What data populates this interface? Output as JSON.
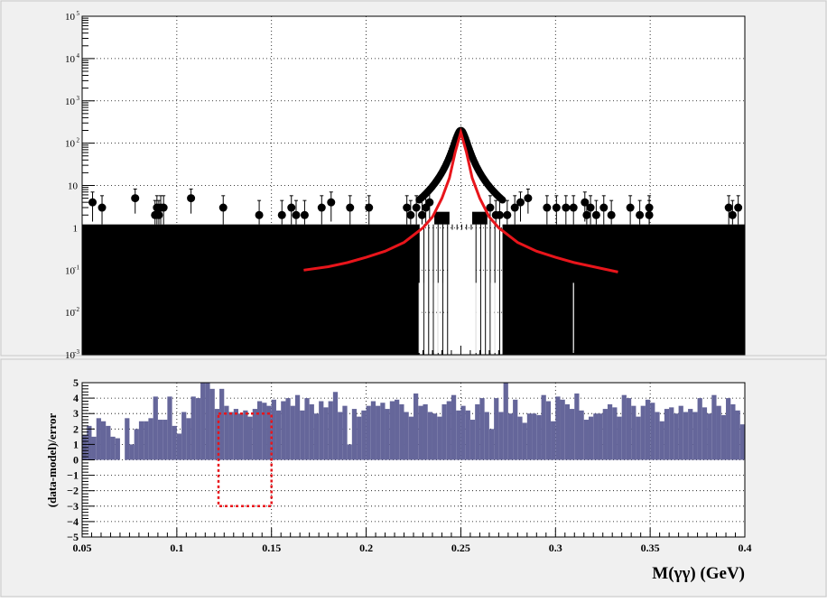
{
  "colors": {
    "background": "#f0f0f0",
    "plot_bg": "#ffffff",
    "data_points": "#000000",
    "fit_curve": "#e8151b",
    "residual_bars": "#65669a",
    "box": "#e8151b"
  },
  "chart_data": [
    {
      "type": "scatter",
      "name": "top-panel",
      "yscale": "log",
      "xlim": [
        0.05,
        0.4
      ],
      "ylim": [
        0.001,
        100000
      ],
      "grid": true,
      "y_ticks": [
        {
          "value": 0.001,
          "base": "10",
          "exp": "-3"
        },
        {
          "value": 0.01,
          "base": "10",
          "exp": "-2"
        },
        {
          "value": 0.1,
          "base": "10",
          "exp": "-1"
        },
        {
          "value": 1,
          "base": "1",
          "exp": ""
        },
        {
          "value": 10,
          "base": "10",
          "exp": ""
        },
        {
          "value": 100,
          "base": "10",
          "exp": "2"
        },
        {
          "value": 1000,
          "base": "10",
          "exp": "3"
        },
        {
          "value": 10000,
          "base": "10",
          "exp": "4"
        },
        {
          "value": 100000,
          "base": "10",
          "exp": "5"
        }
      ],
      "baseline_level": 1.2,
      "isolated_points": [
        {
          "x": 0.0555,
          "y": 4
        },
        {
          "x": 0.0605,
          "y": 3
        },
        {
          "x": 0.078,
          "y": 5
        },
        {
          "x": 0.0885,
          "y": 2
        },
        {
          "x": 0.0895,
          "y": 3
        },
        {
          "x": 0.0905,
          "y": 2
        },
        {
          "x": 0.0915,
          "y": 3
        },
        {
          "x": 0.093,
          "y": 3
        },
        {
          "x": 0.1075,
          "y": 5
        },
        {
          "x": 0.1245,
          "y": 3
        },
        {
          "x": 0.1435,
          "y": 2
        },
        {
          "x": 0.1555,
          "y": 2
        },
        {
          "x": 0.1605,
          "y": 3
        },
        {
          "x": 0.163,
          "y": 2
        },
        {
          "x": 0.1675,
          "y": 2
        },
        {
          "x": 0.1765,
          "y": 3
        },
        {
          "x": 0.1815,
          "y": 4
        },
        {
          "x": 0.1915,
          "y": 3
        },
        {
          "x": 0.2015,
          "y": 3
        },
        {
          "x": 0.2215,
          "y": 3
        },
        {
          "x": 0.2235,
          "y": 2
        },
        {
          "x": 0.2265,
          "y": 3
        },
        {
          "x": 0.2295,
          "y": 2
        },
        {
          "x": 0.2315,
          "y": 3
        },
        {
          "x": 0.2335,
          "y": 4
        },
        {
          "x": 0.2655,
          "y": 3
        },
        {
          "x": 0.2685,
          "y": 2
        },
        {
          "x": 0.2705,
          "y": 2
        },
        {
          "x": 0.2745,
          "y": 2
        },
        {
          "x": 0.2785,
          "y": 3
        },
        {
          "x": 0.2815,
          "y": 4
        },
        {
          "x": 0.2855,
          "y": 5
        },
        {
          "x": 0.2955,
          "y": 3
        },
        {
          "x": 0.3005,
          "y": 3
        },
        {
          "x": 0.3055,
          "y": 3
        },
        {
          "x": 0.3095,
          "y": 3
        },
        {
          "x": 0.3155,
          "y": 4
        },
        {
          "x": 0.3165,
          "y": 2
        },
        {
          "x": 0.3185,
          "y": 3
        },
        {
          "x": 0.3215,
          "y": 2
        },
        {
          "x": 0.3255,
          "y": 3
        },
        {
          "x": 0.3295,
          "y": 2
        },
        {
          "x": 0.3395,
          "y": 3
        },
        {
          "x": 0.3445,
          "y": 2
        },
        {
          "x": 0.3495,
          "y": 3
        },
        {
          "x": 0.3495,
          "y": 2
        },
        {
          "x": 0.3915,
          "y": 3
        },
        {
          "x": 0.3935,
          "y": 2
        },
        {
          "x": 0.3965,
          "y": 3
        }
      ],
      "peak": {
        "center": 0.25,
        "amplitude": 200,
        "width": 0.006,
        "range": [
          0.228,
          0.272
        ]
      },
      "fit_curve": [
        {
          "x": 0.167,
          "y": 0.1
        },
        {
          "x": 0.18,
          "y": 0.12
        },
        {
          "x": 0.19,
          "y": 0.15
        },
        {
          "x": 0.2,
          "y": 0.2
        },
        {
          "x": 0.21,
          "y": 0.28
        },
        {
          "x": 0.22,
          "y": 0.45
        },
        {
          "x": 0.23,
          "y": 1.0
        },
        {
          "x": 0.235,
          "y": 1.8
        },
        {
          "x": 0.24,
          "y": 5
        },
        {
          "x": 0.244,
          "y": 15
        },
        {
          "x": 0.247,
          "y": 60
        },
        {
          "x": 0.25,
          "y": 180
        },
        {
          "x": 0.253,
          "y": 60
        },
        {
          "x": 0.256,
          "y": 15
        },
        {
          "x": 0.26,
          "y": 5
        },
        {
          "x": 0.265,
          "y": 1.8
        },
        {
          "x": 0.27,
          "y": 1.0
        },
        {
          "x": 0.28,
          "y": 0.45
        },
        {
          "x": 0.29,
          "y": 0.28
        },
        {
          "x": 0.3,
          "y": 0.2
        },
        {
          "x": 0.31,
          "y": 0.15
        },
        {
          "x": 0.32,
          "y": 0.12
        },
        {
          "x": 0.333,
          "y": 0.09
        }
      ],
      "notches": [
        0.228,
        0.23,
        0.232,
        0.234,
        0.236,
        0.238,
        0.24,
        0.242,
        0.258,
        0.26,
        0.262,
        0.264,
        0.266,
        0.268,
        0.3095
      ]
    },
    {
      "type": "bar",
      "name": "bottom-panel",
      "ylabel": "(data-model)/error",
      "xlabel": "M(γγ) (GeV)",
      "xlim": [
        0.05,
        0.4
      ],
      "ylim": [
        -5,
        5
      ],
      "grid": true,
      "x_ticks": [
        {
          "value": 0.05,
          "label": "0.05"
        },
        {
          "value": 0.1,
          "label": "0.1"
        },
        {
          "value": 0.15,
          "label": "0.15"
        },
        {
          "value": 0.2,
          "label": "0.2"
        },
        {
          "value": 0.25,
          "label": "0.25"
        },
        {
          "value": 0.3,
          "label": "0.3"
        },
        {
          "value": 0.35,
          "label": "0.35"
        },
        {
          "value": 0.4,
          "label": "0.4"
        }
      ],
      "y_ticks": [
        {
          "value": 5,
          "label": "5"
        },
        {
          "value": 4,
          "label": "4"
        },
        {
          "value": 3,
          "label": "3"
        },
        {
          "value": 2,
          "label": "2"
        },
        {
          "value": 1,
          "label": "1"
        },
        {
          "value": 0,
          "label": "0"
        },
        {
          "value": -1,
          "label": "−1"
        },
        {
          "value": -2,
          "label": "−2"
        },
        {
          "value": -3,
          "label": "−3"
        },
        {
          "value": -4,
          "label": "−4"
        },
        {
          "value": -5,
          "label": "−5"
        }
      ],
      "bin_width": 0.0025,
      "values": [
        1.6,
        2.2,
        1.5,
        2.7,
        2.5,
        2.2,
        1.5,
        1.4,
        0,
        2.7,
        1,
        2,
        2.5,
        2.5,
        2.7,
        4.1,
        2.6,
        2.6,
        4.1,
        2.2,
        1.7,
        3.1,
        2.7,
        4.1,
        4,
        5,
        5,
        4.6,
        3.3,
        4.6,
        3.5,
        3.1,
        3.3,
        3.0,
        3.2,
        2.8,
        3.3,
        3.8,
        3.7,
        3.5,
        3.9,
        3.2,
        3.8,
        4.0,
        3.5,
        4.2,
        3.2,
        4.0,
        3.6,
        3.0,
        3.8,
        3.4,
        3.8,
        4.4,
        3.1,
        3.5,
        1.0,
        3.3,
        2.8,
        3.2,
        3.5,
        3.8,
        3.5,
        3.7,
        3.3,
        3.8,
        3.9,
        3.6,
        3.1,
        2.8,
        4.3,
        3.5,
        3.6,
        3.1,
        3.0,
        2.8,
        3.6,
        3.8,
        4.2,
        3.2,
        3.5,
        3.2,
        2.6,
        3.6,
        4.0,
        3.1,
        2.0,
        4.0,
        3.1,
        5.1,
        3.0,
        3.9,
        2.8,
        2.4,
        3.0,
        3.0,
        2.9,
        4.2,
        3.8,
        2.5,
        4.1,
        3.9,
        3.6,
        3.3,
        4.3,
        3.2,
        2.6,
        2.8,
        3.0,
        3.0,
        3.3,
        3.6,
        3.4,
        2.8,
        4.2,
        4.0,
        3.5,
        2.8,
        3.5,
        3.9,
        3.7,
        3.1,
        2.5,
        3.3,
        3.4,
        3.0,
        3.5,
        3.1,
        3.3,
        3.1,
        4.0,
        3.4,
        3.0,
        4.2,
        3.5,
        2.9,
        4.0,
        3.6,
        3.2,
        2.3,
        2.4,
        2.2
      ],
      "box": {
        "x0": 0.122,
        "x1": 0.15,
        "y0": -3,
        "y1": 3
      }
    }
  ]
}
